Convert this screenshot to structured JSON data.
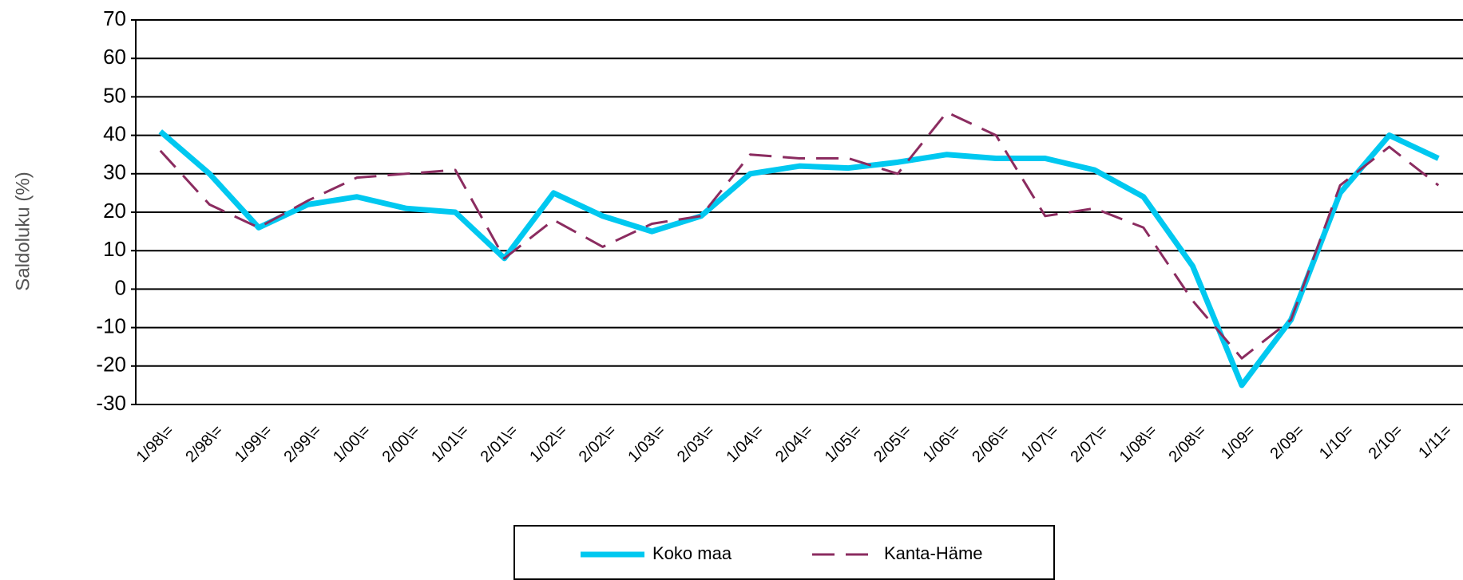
{
  "chart_data": {
    "type": "line",
    "y_label": "Saldoluku (%)",
    "categories": [
      "1/98\\=",
      "2/98\\=",
      "1/99\\=",
      "2/99\\=",
      "1/00\\=",
      "2/00\\=",
      "1/01\\=",
      "2/01\\=",
      "1/02\\=",
      "2/02\\=",
      "1/03\\=",
      "2/03\\=",
      "1/04\\=",
      "2/04\\=",
      "1/05\\=",
      "2/05\\=",
      "1/06\\=",
      "2/06\\=",
      "1/07\\=",
      "2/07\\=",
      "1/08\\=",
      "2/08\\=",
      "1/09=",
      "2/09=",
      "1/10=",
      "2/10=",
      "1/11="
    ],
    "series": [
      {
        "name": "Koko maa",
        "color": "#00c8f0",
        "values": [
          41,
          30,
          16,
          22,
          24,
          21,
          20,
          8,
          25,
          19,
          15,
          19,
          30,
          32,
          31.5,
          33,
          35,
          34,
          34,
          31,
          24,
          6,
          -25,
          -8,
          25,
          40,
          34
        ]
      },
      {
        "name": "Kanta-Häme",
        "color": "#8b2c60",
        "dashed": true,
        "values": [
          36,
          22,
          16,
          23,
          29,
          30,
          31,
          8,
          18,
          11,
          17,
          19,
          35,
          34,
          34,
          30,
          46,
          40,
          19,
          21,
          16,
          -3,
          -18,
          -8,
          27,
          37,
          27
        ]
      }
    ],
    "ylim": [
      -30,
      70
    ],
    "yticks": [
      -30,
      -20,
      -10,
      0,
      10,
      20,
      30,
      40,
      50,
      60,
      70
    ],
    "grid": true,
    "legend": "bottom"
  }
}
